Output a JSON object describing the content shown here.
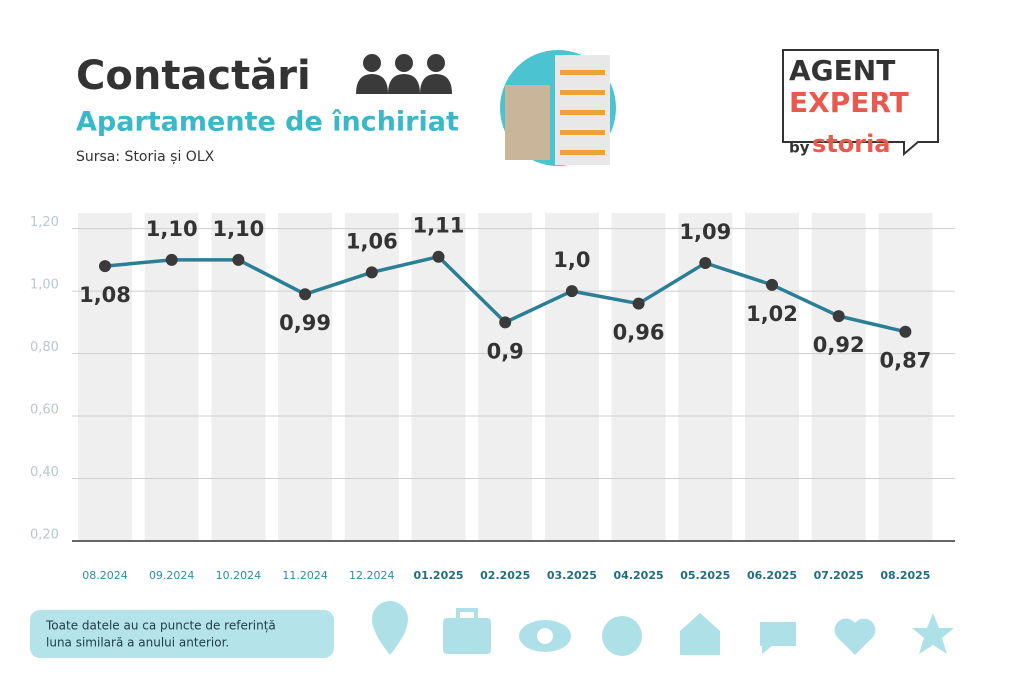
{
  "header": {
    "title": "Contactări",
    "subtitle": "Apartamente de închiriat",
    "source": "Sursa: Storia și OLX"
  },
  "logo": {
    "line1": "AGENT",
    "line2": "EXPERT",
    "by": "by",
    "brand": "storia"
  },
  "note": {
    "lines": [
      "Toate datele au ca puncte de referință",
      "luna similară a anului anterior."
    ]
  },
  "chart_data": {
    "type": "line",
    "color": "#2a7f96",
    "marker_color": "#3a3a3a",
    "categories": [
      "08.2024",
      "09.2024",
      "10.2024",
      "11.2024",
      "12.2024",
      "01.2025",
      "02.2025",
      "03.2025",
      "04.2025",
      "05.2025",
      "06.2025",
      "07.2025",
      "08.2025"
    ],
    "values": [
      1.08,
      1.1,
      1.1,
      0.99,
      1.06,
      1.11,
      0.9,
      1.0,
      0.96,
      1.09,
      1.02,
      0.92,
      0.87
    ],
    "value_labels": [
      "1,08",
      "1,10",
      "1,10",
      "0,99",
      "1,06",
      "1,11",
      "0,9",
      "1,0",
      "0,96",
      "1,09",
      "1,02",
      "0,92",
      "0,87"
    ],
    "ylim": [
      0.2,
      1.25
    ],
    "yticks": [
      {
        "value": 0.2,
        "label": "0,20"
      },
      {
        "value": 0.4,
        "label": "0,40"
      },
      {
        "value": 0.6,
        "label": "0,60"
      },
      {
        "value": 0.8,
        "label": "0,80"
      },
      {
        "value": 1.0,
        "label": "1,00"
      },
      {
        "value": 1.2,
        "label": "1,20"
      }
    ],
    "grid": true
  }
}
